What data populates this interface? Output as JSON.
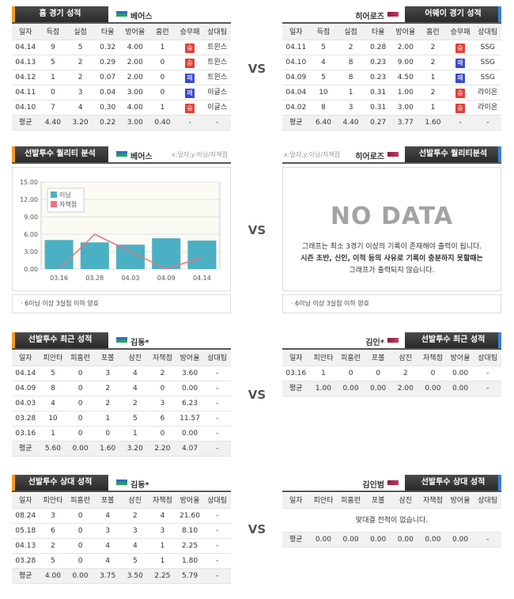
{
  "result_colors": {
    "승": "#e2403a",
    "패": "#3b4bd0"
  },
  "sections": [
    {
      "vs": "VS",
      "left": {
        "title": "홈 경기 성적",
        "team": "베어스",
        "columns": [
          "일자",
          "득점",
          "실점",
          "타율",
          "방어율",
          "홈런",
          "승무패",
          "상대팀"
        ],
        "rows": [
          [
            "04.14",
            "9",
            "5",
            "0.32",
            "4.00",
            "1",
            "승",
            "트윈스"
          ],
          [
            "04.13",
            "5",
            "2",
            "0.29",
            "2.00",
            "0",
            "승",
            "트윈스"
          ],
          [
            "04.12",
            "1",
            "2",
            "0.07",
            "2.00",
            "0",
            "패",
            "트윈스"
          ],
          [
            "04.11",
            "0",
            "3",
            "0.04",
            "3.00",
            "0",
            "패",
            "이글스"
          ],
          [
            "04.10",
            "7",
            "4",
            "0.30",
            "4.00",
            "1",
            "승",
            "이글스"
          ]
        ],
        "average": [
          "평균",
          "4.40",
          "3.20",
          "0.22",
          "3.00",
          "0.40",
          "-",
          "-"
        ]
      },
      "right": {
        "title": "어웨이 경기 성적",
        "team": "히어로즈",
        "columns": [
          "일자",
          "득점",
          "실점",
          "타율",
          "방어율",
          "홈런",
          "승무패",
          "상대팀"
        ],
        "rows": [
          [
            "04.11",
            "5",
            "2",
            "0.28",
            "2.00",
            "2",
            "승",
            "SSG"
          ],
          [
            "04.10",
            "4",
            "8",
            "0.23",
            "9.00",
            "2",
            "패",
            "SSG"
          ],
          [
            "04.09",
            "5",
            "8",
            "0.23",
            "4.50",
            "1",
            "패",
            "SSG"
          ],
          [
            "04.04",
            "10",
            "1",
            "0.31",
            "1.00",
            "2",
            "승",
            "라이온"
          ],
          [
            "04.02",
            "8",
            "3",
            "0.31",
            "3.00",
            "1",
            "승",
            "라이온"
          ]
        ],
        "average": [
          "평균",
          "6.40",
          "4.40",
          "0.27",
          "3.77",
          "1.60",
          "-",
          "-"
        ]
      }
    },
    {
      "vs": "VS",
      "left": {
        "title": "선발투수 퀄리티 분석",
        "team": "베어스",
        "axis_note": "x:일자,y:이닝/자책점",
        "chart": {
          "type": "bar",
          "categories": [
            "03.16",
            "03.28",
            "04.03",
            "04.09",
            "04.14"
          ],
          "series": [
            {
              "name": "이닝",
              "color": "#4bb0c4",
              "type": "bar",
              "values": [
                5,
                4.6,
                4.2,
                5.3,
                4.9
              ]
            },
            {
              "name": "자책점",
              "color": "#f07080",
              "type": "line",
              "values": [
                0,
                6,
                3,
                0,
                2
              ]
            }
          ],
          "ylim": [
            0,
            15
          ],
          "yticks": [
            {
              "value": 0,
              "label": "0.00"
            },
            {
              "value": 3,
              "label": "3.00"
            },
            {
              "value": 6,
              "label": "6.00"
            },
            {
              "value": 9,
              "label": "9.00"
            },
            {
              "value": 12,
              "label": "12.00"
            },
            {
              "value": 15,
              "label": "15.00"
            }
          ],
          "grid": true
        },
        "note": "6이닝 이상 3실점 이하 양호"
      },
      "right": {
        "title": "선발투수 퀄리티분석",
        "team": "히어로즈",
        "axis_note": "x:일자,y:이닝/자책점",
        "no_data": {
          "heading": "NO DATA",
          "lines": [
            "그래프는 최소 3경기 이상의 기록이 존재해야 출력이 됩니다.",
            "시즌 초반, 신인, 이적 등의 사유로 기록이 충분하지 못할때는",
            "그래프가 출력되지 않습니다."
          ]
        },
        "note": "6이닝 이상 3실점 이하 양호"
      }
    },
    {
      "vs": "VS",
      "left": {
        "title": "선발투수 최근 성적",
        "team": "김동*",
        "columns": [
          "일자",
          "피안타",
          "피홈런",
          "포볼",
          "삼진",
          "자책점",
          "방어율",
          "상대팀"
        ],
        "rows": [
          [
            "04.14",
            "5",
            "0",
            "3",
            "4",
            "2",
            "3.60",
            "-"
          ],
          [
            "04.09",
            "8",
            "0",
            "2",
            "4",
            "0",
            "0.00",
            "-"
          ],
          [
            "04.03",
            "4",
            "0",
            "2",
            "2",
            "3",
            "6.23",
            "-"
          ],
          [
            "03.28",
            "10",
            "0",
            "1",
            "5",
            "6",
            "11.57",
            "-"
          ],
          [
            "03.16",
            "1",
            "0",
            "0",
            "1",
            "0",
            "0.00",
            "-"
          ]
        ],
        "average": [
          "평균",
          "5.60",
          "0.00",
          "1.60",
          "3.20",
          "2.20",
          "4.07",
          "-"
        ]
      },
      "right": {
        "title": "선발투수 최근 성적",
        "team": "김인*",
        "columns": [
          "일자",
          "피안타",
          "피홈런",
          "포볼",
          "삼진",
          "자책점",
          "방어율",
          "상대팀"
        ],
        "rows": [
          [
            "03.16",
            "1",
            "0",
            "0",
            "2",
            "0",
            "0.00",
            "-"
          ]
        ],
        "average": [
          "평균",
          "1.00",
          "0.00",
          "0.00",
          "2.00",
          "0.00",
          "0.00",
          "-"
        ]
      }
    },
    {
      "vs": "VS",
      "left": {
        "title": "선발투수 상대 성적",
        "team": "김동*",
        "columns": [
          "일자",
          "피안타",
          "피홈런",
          "포볼",
          "삼진",
          "자책점",
          "방어율",
          "상대팀"
        ],
        "rows": [
          [
            "08.24",
            "3",
            "0",
            "4",
            "2",
            "4",
            "21.60",
            "-"
          ],
          [
            "05.18",
            "6",
            "0",
            "3",
            "3",
            "3",
            "8.10",
            "-"
          ],
          [
            "04.13",
            "2",
            "0",
            "4",
            "4",
            "1",
            "2.25",
            "-"
          ],
          [
            "03.28",
            "5",
            "0",
            "4",
            "5",
            "1",
            "1.80",
            "-"
          ]
        ],
        "average": [
          "평균",
          "4.00",
          "0.00",
          "3.75",
          "3.50",
          "2.25",
          "5.79",
          "-"
        ]
      },
      "right": {
        "title": "선발투수 상대 성적",
        "team": "김인범",
        "columns": [
          "일자",
          "피안타",
          "피홈런",
          "포볼",
          "삼진",
          "자책점",
          "방어율",
          "상대팀"
        ],
        "rows": [],
        "message": "맞대결 전적이 없습니다.",
        "average": [
          "평균",
          "0.00",
          "0.00",
          "0.00",
          "0.00",
          "0.00",
          "0.00",
          "-"
        ]
      }
    }
  ]
}
